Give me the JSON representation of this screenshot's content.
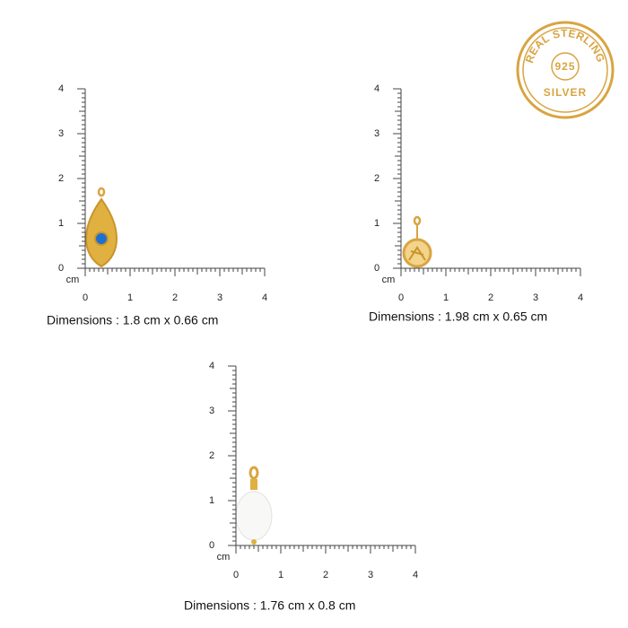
{
  "badge": {
    "top": "REAL STERLING",
    "center": "925",
    "bottom": "SILVER"
  },
  "ruler": {
    "unit": "cm",
    "ticks": [
      0,
      1,
      2,
      3,
      4
    ]
  },
  "items": [
    {
      "caption": "Dimensions : 1.8 cm x 0.66 cm"
    },
    {
      "caption": "Dimensions : 1.98 cm x 0.65 cm"
    },
    {
      "caption": "Dimensions : 1.76 cm x 0.8 cm"
    }
  ]
}
